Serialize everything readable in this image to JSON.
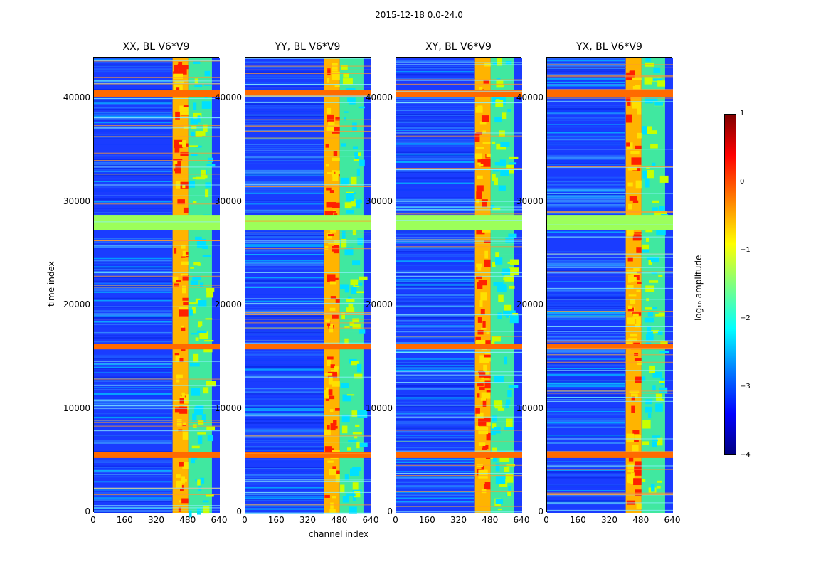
{
  "chart_data": {
    "type": "heatmap",
    "title": "2015-12-18 0.0-24.0",
    "xlabel": "channel index",
    "ylabel": "time index",
    "xlim": [
      0,
      640
    ],
    "ylim": [
      0,
      44000
    ],
    "xticks": [
      "0",
      "160",
      "320",
      "480",
      "640"
    ],
    "yticks": [
      "0",
      "10000",
      "20000",
      "30000",
      "40000"
    ],
    "panels": [
      {
        "title": "XX, BL V6*V9"
      },
      {
        "title": "YY, BL V6*V9"
      },
      {
        "title": "XY, BL V6*V9"
      },
      {
        "title": "YX, BL V6*V9"
      }
    ],
    "colorbar": {
      "label": "log₁₀ amplitude",
      "range": [
        -4,
        1
      ],
      "ticks": [
        "1",
        "0",
        "−1",
        "−2",
        "−3",
        "−4"
      ],
      "colormap": "jet"
    },
    "bands": {
      "flagged_time_rows": [
        [
          27300,
          28800
        ]
      ],
      "strong_rfi_rows": [
        [
          40200,
          40900
        ],
        [
          15800,
          16300
        ],
        [
          5300,
          5900
        ]
      ],
      "bright_channel_ranges": [
        [
          400,
          480
        ],
        [
          480,
          600
        ]
      ]
    }
  }
}
